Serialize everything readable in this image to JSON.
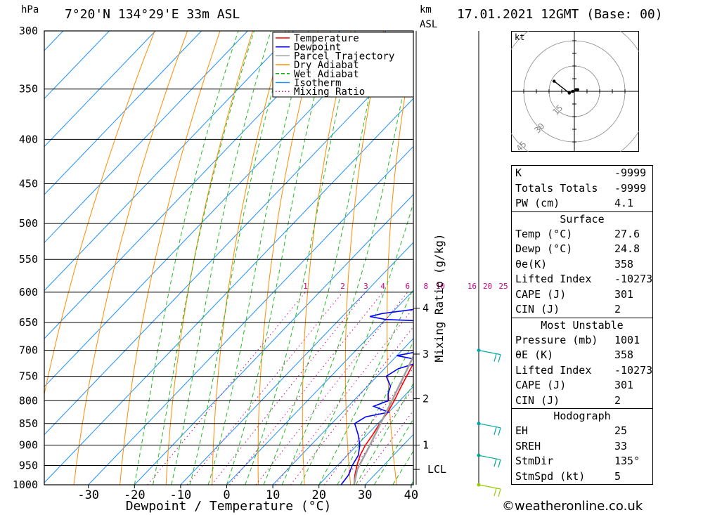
{
  "header": {
    "pressure_unit": "hPa",
    "location": "7°20'N 134°29'E 33m ASL",
    "km_label": "km",
    "asl_label": "ASL",
    "datetime": "17.01.2021 12GMT (Base: 00)"
  },
  "credit": "©weatheronline.co.uk",
  "chart_data": {
    "type": "line",
    "title": "",
    "xlabel": "Dewpoint / Temperature (°C)",
    "ylabel": "hPa",
    "y2label": "Mixing Ratio (g/kg)",
    "xlim": [
      -40,
      40
    ],
    "x_ticks": [
      -30,
      -20,
      -10,
      0,
      10,
      20,
      30,
      40
    ],
    "y_ticks": [
      300,
      350,
      400,
      450,
      500,
      550,
      600,
      650,
      700,
      750,
      800,
      850,
      900,
      950,
      1000
    ],
    "pressure_range": [
      300,
      1000
    ],
    "grid": true,
    "legend_position": "top",
    "legend": [
      {
        "name": "Temperature",
        "color": "#ff0000",
        "style": "solid"
      },
      {
        "name": "Dewpoint",
        "color": "#0000ff",
        "style": "solid"
      },
      {
        "name": "Parcel Trajectory",
        "color": "#a0a0a0",
        "style": "solid"
      },
      {
        "name": "Dry Adiabat",
        "color": "#ff8c00",
        "style": "solid"
      },
      {
        "name": "Wet Adiabat",
        "color": "#00bb00",
        "style": "dashed"
      },
      {
        "name": "Isotherm",
        "color": "#1e90ff",
        "style": "solid"
      },
      {
        "name": "Mixing Ratio",
        "color": "#d00080",
        "style": "dotted"
      }
    ],
    "mixing_ratio_labels": [
      "1",
      "2",
      "3",
      "4",
      "6",
      "8",
      "10",
      "16",
      "20",
      "25"
    ],
    "mixing_ratio_values": [
      1,
      2,
      3,
      4,
      6,
      8,
      10,
      16,
      20,
      25
    ],
    "km_levels": [
      {
        "label": "1",
        "p": 900
      },
      {
        "label": "2",
        "p": 796
      },
      {
        "label": "3",
        "p": 707
      },
      {
        "label": "4",
        "p": 626
      },
      {
        "label": "LCL",
        "p": 960
      }
    ],
    "series": [
      {
        "name": "Temperature",
        "color": "#ff0000",
        "points": [
          [
            1000,
            27.6
          ],
          [
            975,
            25.8
          ],
          [
            950,
            24.2
          ],
          [
            925,
            22.8
          ],
          [
            900,
            21.8
          ],
          [
            875,
            21.2
          ],
          [
            850,
            20.4
          ],
          [
            825,
            19.8
          ],
          [
            800,
            18.8
          ],
          [
            775,
            17.6
          ],
          [
            750,
            16.4
          ],
          [
            725,
            15.2
          ],
          [
            700,
            13.6
          ],
          [
            675,
            12.3
          ],
          [
            650,
            11.2
          ],
          [
            625,
            9.6
          ],
          [
            612,
            9.0
          ]
        ]
      },
      {
        "name": "Dewpoint",
        "color": "#0000ff",
        "points": [
          [
            1000,
            24.8
          ],
          [
            975,
            24.4
          ],
          [
            950,
            23.2
          ],
          [
            925,
            22.4
          ],
          [
            900,
            20.6
          ],
          [
            875,
            18.0
          ],
          [
            850,
            15.0
          ],
          [
            835,
            16.0
          ],
          [
            825,
            20.0
          ],
          [
            812,
            15.5
          ],
          [
            800,
            17.5
          ],
          [
            785,
            16.0
          ],
          [
            770,
            15.0
          ],
          [
            750,
            12.0
          ],
          [
            735,
            13.0
          ],
          [
            720,
            17.0
          ],
          [
            710,
            10.0
          ],
          [
            700,
            15.0
          ],
          [
            685,
            16.5
          ],
          [
            670,
            15.0
          ],
          [
            665,
            11.0
          ],
          [
            660,
            14.0
          ],
          [
            655,
            17.5
          ],
          [
            650,
            16.0
          ],
          [
            645,
            0.0
          ],
          [
            640,
            -4.0
          ],
          [
            635,
            -2.0
          ],
          [
            628,
            4.0
          ],
          [
            625,
            10.0
          ],
          [
            620,
            7.0
          ]
        ]
      },
      {
        "name": "Parcel Trajectory",
        "color": "#a0a0a0",
        "points": [
          [
            1000,
            27.6
          ],
          [
            960,
            25.1
          ],
          [
            900,
            22.8
          ],
          [
            850,
            20.6
          ],
          [
            800,
            18.3
          ],
          [
            750,
            15.8
          ],
          [
            700,
            13.1
          ],
          [
            650,
            10.2
          ],
          [
            600,
            6.8
          ],
          [
            550,
            2.9
          ],
          [
            500,
            -1.6
          ],
          [
            450,
            -7.0
          ],
          [
            400,
            -13.8
          ],
          [
            370,
            -18.5
          ]
        ]
      }
    ],
    "wind_barbs": [
      {
        "p": 1000,
        "color": "#99cc00"
      },
      {
        "p": 925,
        "color": "#00aa88"
      },
      {
        "p": 850,
        "color": "#00aaaa"
      },
      {
        "p": 700,
        "color": "#00aaaa"
      }
    ],
    "hodograph": {
      "unit_label": "kt",
      "ring_labels": [
        "15",
        "30",
        "45"
      ],
      "points": [
        [
          -12,
          6
        ],
        [
          -3,
          -1
        ],
        [
          -1,
          0
        ],
        [
          1,
          1
        ],
        [
          2,
          1
        ]
      ]
    }
  },
  "indices": {
    "top": [
      {
        "key": "K",
        "value": "-9999"
      },
      {
        "key": "Totals Totals",
        "value": "-9999"
      },
      {
        "key": "PW (cm)",
        "value": "4.1"
      }
    ],
    "surface": {
      "title": "Surface",
      "rows": [
        {
          "key": "Temp (°C)",
          "value": "27.6"
        },
        {
          "key": "Dewp (°C)",
          "value": "24.8"
        },
        {
          "key": "θe(K)",
          "value": "358"
        },
        {
          "key": "Lifted Index",
          "value": "-10273"
        },
        {
          "key": "CAPE (J)",
          "value": "301"
        },
        {
          "key": "CIN (J)",
          "value": "2"
        }
      ]
    },
    "most_unstable": {
      "title": "Most Unstable",
      "rows": [
        {
          "key": "Pressure (mb)",
          "value": "1001"
        },
        {
          "key": "θE (K)",
          "value": "358"
        },
        {
          "key": "Lifted Index",
          "value": "-10273"
        },
        {
          "key": "CAPE (J)",
          "value": "301"
        },
        {
          "key": "CIN (J)",
          "value": "2"
        }
      ]
    },
    "hodograph": {
      "title": "Hodograph",
      "rows": [
        {
          "key": "EH",
          "value": "25"
        },
        {
          "key": "SREH",
          "value": "33"
        },
        {
          "key": "StmDir",
          "value": "135°"
        },
        {
          "key": "StmSpd (kt)",
          "value": "5"
        }
      ]
    }
  }
}
